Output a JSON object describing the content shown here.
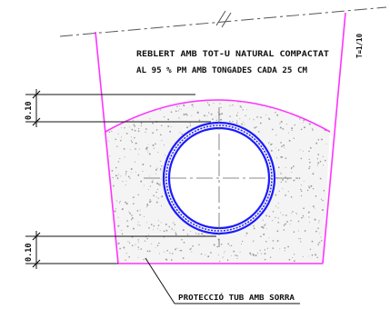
{
  "notes": {
    "fill_line1": "REBLERT AMB TOT-U NATURAL COMPACTAT",
    "fill_line2": "AL 95 % PM AMB TONGADES CADA 25 CM",
    "slope": "T=1/10",
    "protection": "PROTECCIÓ TUB AMB SORRA"
  },
  "dimensions": {
    "top_cover": "0.10",
    "bottom_bed": "0.10"
  },
  "colors": {
    "trench": "#ff33ff",
    "pipe": "#1a1aff",
    "lines": "#111111",
    "centerline": "#666666",
    "sand_fill": "#f4f4f4"
  }
}
